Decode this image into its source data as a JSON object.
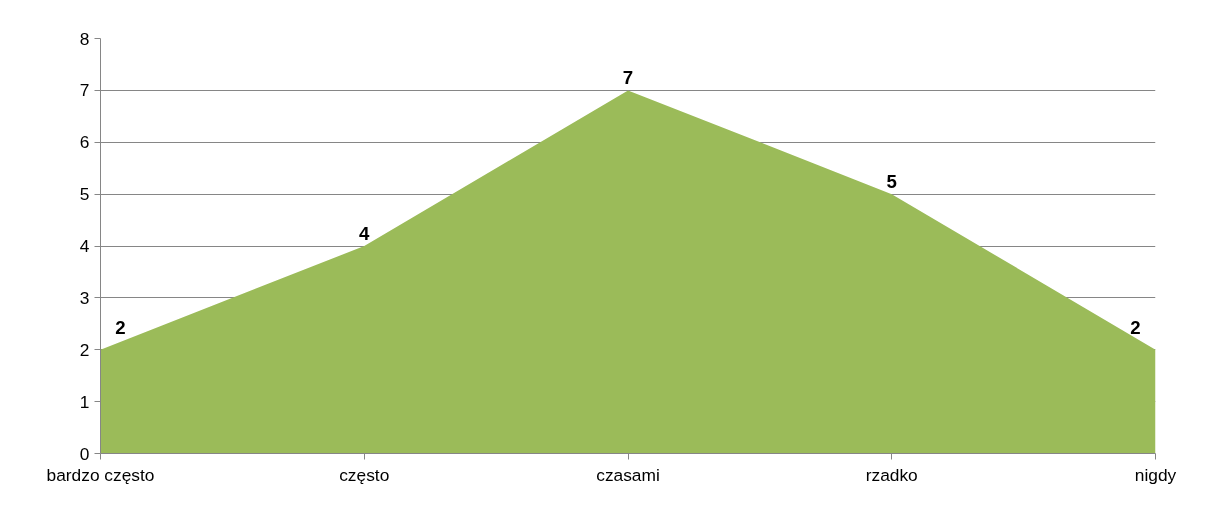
{
  "chart_data": {
    "type": "area",
    "categories": [
      "bardzo często",
      "często",
      "czasami",
      "rzadko",
      "nigdy"
    ],
    "values": [
      2,
      4,
      7,
      5,
      2
    ],
    "color": "#9bbb59",
    "ylim": [
      0,
      8
    ],
    "yticks": [
      0,
      1,
      2,
      3,
      4,
      5,
      6,
      7,
      8
    ],
    "grid": "y",
    "data_labels": true
  }
}
